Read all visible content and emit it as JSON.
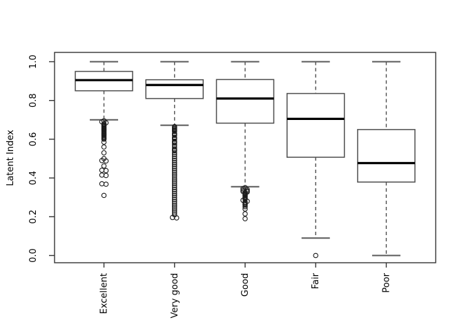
{
  "figure": {
    "background": "#ffffff",
    "border_color": "#333333",
    "line_color": "#4d4d4d",
    "median_color": "#000000"
  },
  "chart_data": {
    "type": "boxplot",
    "title": "",
    "xlabel": "",
    "ylabel": "Latent Index",
    "ylim": [
      0,
      1
    ],
    "grid": false,
    "legend": "none",
    "yticks": [
      0.0,
      0.2,
      0.4,
      0.6,
      0.8,
      1.0
    ],
    "ytick_labels": [
      "0.0",
      "0.2",
      "0.4",
      "0.6",
      "0.8",
      "1.0"
    ],
    "categories": [
      "Excellent",
      "Very good",
      "Good",
      "Fair",
      "Poor"
    ],
    "boxes": [
      {
        "label": "Excellent",
        "whisker_low": 0.7,
        "q1": 0.85,
        "median": 0.905,
        "q3": 0.95,
        "whisker_high": 1.0,
        "outliers": [
          0.695,
          0.69,
          0.685,
          0.68,
          0.675,
          0.67,
          0.665,
          0.66,
          0.655,
          0.65,
          0.645,
          0.64,
          0.635,
          0.63,
          0.625,
          0.62,
          0.615,
          0.61,
          0.605,
          0.6,
          0.585,
          0.56,
          0.53,
          0.5,
          0.49,
          0.488,
          0.462,
          0.44,
          0.438,
          0.415,
          0.413,
          0.37,
          0.368,
          0.31
        ]
      },
      {
        "label": "Very good",
        "whisker_low": 0.672,
        "q1": 0.81,
        "median": 0.88,
        "q3": 0.907,
        "whisker_high": 1.0,
        "outliers": [
          0.665,
          0.66,
          0.655,
          0.65,
          0.645,
          0.64,
          0.63,
          0.625,
          0.62,
          0.61,
          0.605,
          0.6,
          0.59,
          0.585,
          0.58,
          0.57,
          0.56,
          0.55,
          0.545,
          0.54,
          0.53,
          0.52,
          0.51,
          0.5,
          0.49,
          0.48,
          0.47,
          0.46,
          0.45,
          0.44,
          0.43,
          0.42,
          0.41,
          0.4,
          0.39,
          0.38,
          0.37,
          0.36,
          0.35,
          0.34,
          0.33,
          0.32,
          0.31,
          0.3,
          0.29,
          0.28,
          0.27,
          0.26,
          0.25,
          0.24,
          0.23,
          0.22,
          0.21,
          0.196,
          0.194
        ]
      },
      {
        "label": "Good",
        "whisker_low": 0.355,
        "q1": 0.683,
        "median": 0.81,
        "q3": 0.908,
        "whisker_high": 1.0,
        "outliers": [
          0.35,
          0.345,
          0.34,
          0.337,
          0.333,
          0.33,
          0.328,
          0.325,
          0.32,
          0.315,
          0.31,
          0.305,
          0.3,
          0.295,
          0.29,
          0.285,
          0.28,
          0.275,
          0.27,
          0.265,
          0.26,
          0.252,
          0.24,
          0.215,
          0.19
        ]
      },
      {
        "label": "Fair",
        "whisker_low": 0.09,
        "q1": 0.507,
        "median": 0.705,
        "q3": 0.836,
        "whisker_high": 1.0,
        "outliers": [
          0.0
        ]
      },
      {
        "label": "Poor",
        "whisker_low": 0.0,
        "q1": 0.379,
        "median": 0.477,
        "q3": 0.65,
        "whisker_high": 1.0,
        "outliers": []
      }
    ]
  }
}
